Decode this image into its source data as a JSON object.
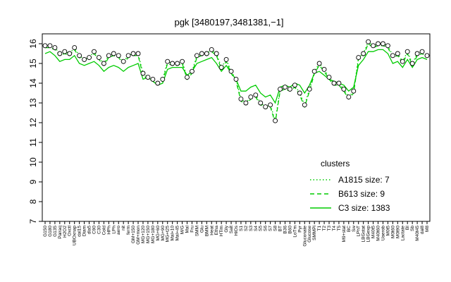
{
  "chart_data": {
    "type": "line",
    "title": "pgk [3480197,3481381,−1]",
    "xlabel": "",
    "ylabel": "",
    "ylim": [
      7,
      16.5
    ],
    "yticks": [
      7,
      8,
      9,
      10,
      11,
      12,
      13,
      14,
      15,
      16
    ],
    "grid": false,
    "legend_position": "bottom-right",
    "x_tick_labels": [
      "G150",
      "G180",
      "G135",
      "Pairaq",
      "H2O2",
      "Oxctl",
      "UBOxnap",
      "dal15",
      "Diam",
      "dla5",
      "C90",
      "C30",
      "Cold",
      "HPh",
      "LPh",
      "aero",
      "nit",
      "ferm",
      "GM+150",
      "GM+mon",
      "MG+120",
      "MG+150",
      "MG+180",
      "MG+60",
      "MG+90",
      "MG+t25",
      "Mal+10",
      "Mal+45",
      "M/G",
      "Mal",
      "Fru",
      "SMM",
      "Glu",
      "BMM",
      "Heat",
      "Etha",
      "HTim",
      "Gly",
      "Salt",
      "HiOs",
      "S1",
      "S2",
      "S3",
      "S4",
      "S5",
      "S6",
      "S7",
      "S8",
      "BT",
      "B36",
      "B60",
      "LoTm",
      "Pyr",
      "Gluconate",
      "Glucose",
      "SMMPi",
      "T1",
      "T2",
      "T3",
      "T4",
      "T5",
      "M9+stat",
      "BC",
      "Sw",
      "LPhT",
      "LBGstat",
      "LBGexp",
      "M40t5",
      "M40t60",
      "Uaerob",
      "M0t5",
      "M0t60",
      "M0t90",
      "Lactate",
      "BI",
      "Sb",
      "M40t45",
      "dal8",
      "M8"
    ],
    "series": [
      {
        "name": "A1815 size: 7",
        "style": "dotted",
        "values": [
          15.9,
          15.9,
          15.8,
          15.5,
          15.6,
          15.5,
          15.8,
          15.4,
          15.2,
          15.3,
          15.6,
          15.3,
          15.0,
          15.4,
          15.5,
          15.4,
          15.1,
          15.4,
          15.5,
          15.5,
          14.5,
          14.3,
          14.2,
          14.0,
          14.2,
          15.1,
          15.0,
          15.0,
          15.1,
          14.3,
          14.6,
          15.4,
          15.5,
          15.5,
          15.7,
          15.5,
          14.8,
          15.2,
          14.6,
          14.2,
          13.2,
          13.0,
          13.3,
          13.4,
          13.0,
          12.8,
          12.9,
          12.1,
          13.7,
          13.8,
          13.7,
          13.9,
          13.5,
          12.9,
          13.7,
          14.6,
          15.0,
          14.7,
          14.3,
          14.0,
          14.0,
          13.7,
          13.3,
          13.6,
          15.3,
          15.5,
          16.1,
          15.9,
          16.0,
          16.0,
          15.9,
          15.4,
          15.5,
          15.1,
          15.6,
          15.0,
          15.5,
          15.6,
          15.4
        ]
      },
      {
        "name": "B613 size: 9",
        "style": "dashed",
        "values": [
          15.8,
          15.8,
          15.7,
          15.4,
          15.5,
          15.4,
          15.7,
          15.3,
          15.1,
          15.2,
          15.5,
          15.2,
          14.9,
          15.3,
          15.4,
          15.3,
          15.0,
          15.3,
          15.4,
          15.4,
          14.4,
          14.2,
          14.1,
          13.9,
          14.1,
          15.0,
          14.9,
          14.9,
          15.0,
          14.2,
          14.5,
          15.3,
          15.4,
          15.4,
          15.6,
          15.4,
          14.7,
          15.1,
          14.5,
          14.1,
          13.1,
          12.9,
          13.2,
          13.3,
          12.9,
          12.7,
          12.8,
          12.0,
          13.6,
          13.7,
          13.6,
          13.8,
          13.4,
          12.8,
          13.6,
          14.5,
          14.9,
          14.6,
          14.2,
          13.9,
          13.9,
          13.6,
          13.2,
          13.5,
          15.2,
          15.4,
          16.0,
          15.8,
          15.9,
          15.9,
          15.8,
          15.3,
          15.4,
          15.0,
          15.5,
          14.9,
          15.4,
          15.5,
          15.3
        ]
      },
      {
        "name": "C3 size: 1383",
        "style": "solid",
        "values": [
          15.5,
          15.6,
          15.4,
          15.1,
          15.2,
          15.2,
          15.4,
          15.0,
          14.9,
          15.0,
          15.1,
          14.9,
          14.6,
          14.8,
          14.9,
          14.8,
          14.6,
          14.8,
          14.9,
          15.0,
          14.2,
          14.3,
          14.1,
          13.9,
          14.0,
          14.7,
          14.8,
          14.8,
          14.8,
          14.4,
          14.6,
          15.0,
          15.1,
          15.2,
          15.3,
          15.0,
          14.6,
          14.9,
          14.5,
          14.2,
          13.6,
          13.6,
          13.8,
          13.9,
          13.5,
          13.3,
          13.4,
          13.0,
          13.8,
          13.9,
          13.8,
          14.0,
          13.9,
          13.5,
          13.9,
          14.5,
          14.6,
          14.4,
          14.2,
          14.1,
          14.0,
          13.9,
          13.6,
          13.8,
          14.9,
          15.2,
          15.6,
          15.6,
          15.7,
          15.7,
          15.5,
          15.0,
          15.1,
          14.8,
          15.2,
          14.8,
          15.2,
          15.3,
          15.2
        ]
      }
    ],
    "legend": {
      "title": "clusters",
      "entries": [
        "A1815 size: 7",
        "B613 size: 9",
        "C3 size: 1383"
      ]
    },
    "colors": {
      "line": "#00cc00",
      "points": "#000000",
      "point_fill": "#ffffff"
    }
  }
}
